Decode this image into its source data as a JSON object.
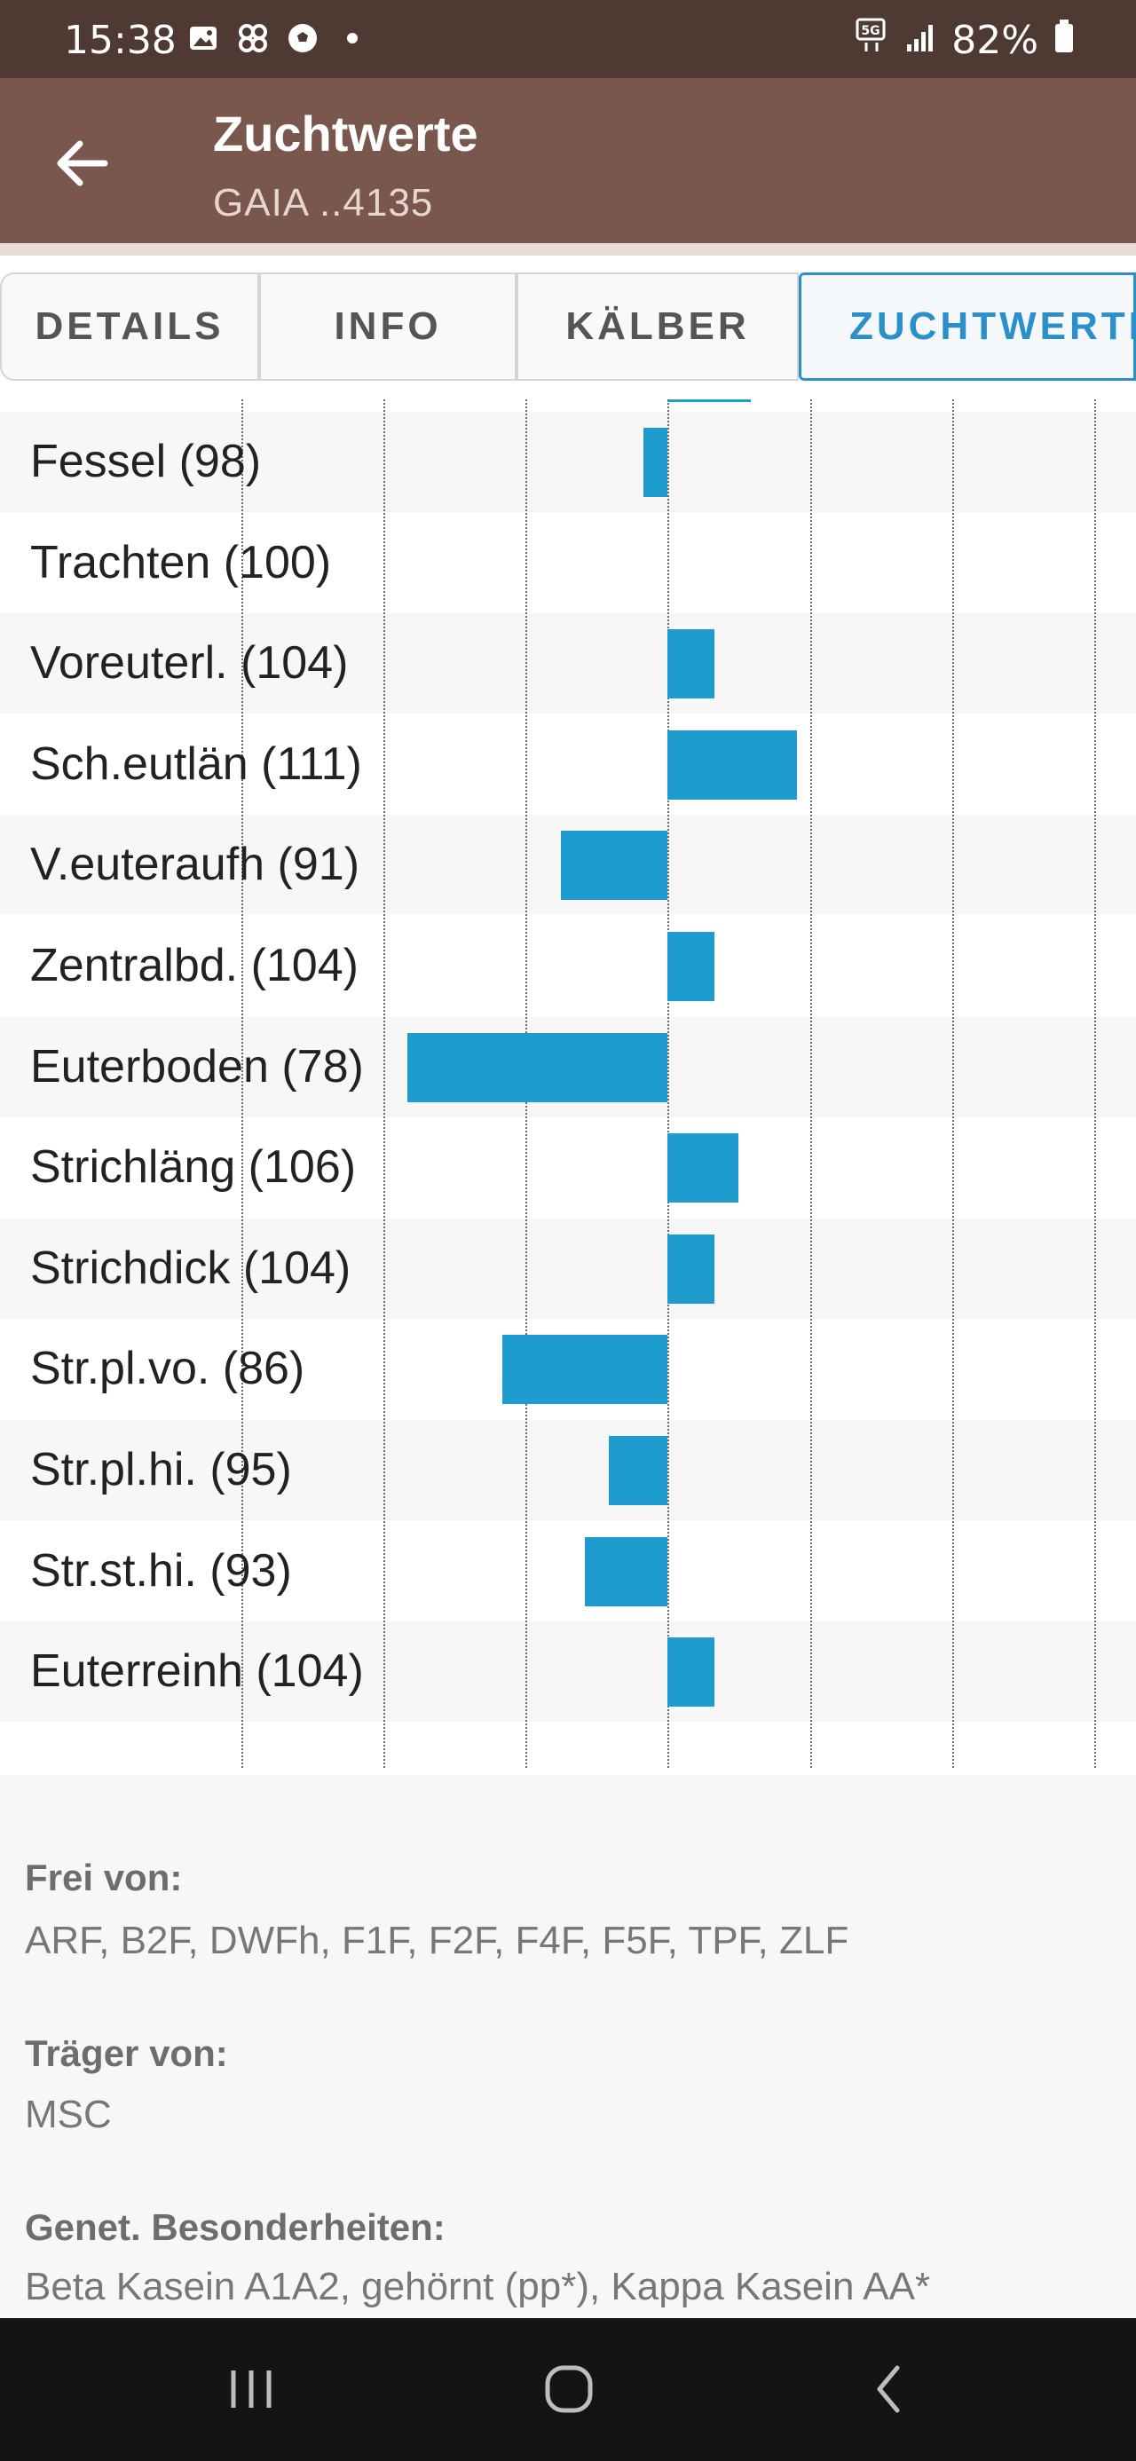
{
  "status_bar": {
    "time": "15:38",
    "network": "5G",
    "battery": "82%",
    "notification_icons": [
      "gallery-icon",
      "pinwheel-icon",
      "soccer-ball-icon",
      "dot-icon"
    ]
  },
  "app_bar": {
    "title": "Zuchtwerte",
    "subtitle": "GAIA ..4135"
  },
  "tabs": [
    {
      "label": "DETAILS",
      "active": false
    },
    {
      "label": "INFO",
      "active": false
    },
    {
      "label": "KÄLBER",
      "active": false
    },
    {
      "label": "ZUCHTWERTE",
      "active": true
    }
  ],
  "chart_data": {
    "type": "bar",
    "orientation": "horizontal",
    "baseline": 100,
    "bar_color": "#1e9bcf",
    "categories": [
      "Fessel (98)",
      "Trachten (100)",
      "Voreuterl. (104)",
      "Sch.eutlän (111)",
      "V.euteraufh (91)",
      "Zentralbd. (104)",
      "Euterboden (78)",
      "Strichläng (106)",
      "Strichdick (104)",
      "Str.pl.vo. (86)",
      "Str.pl.hi. (95)",
      "Str.st.hi. (93)",
      "Euterreinh (104)"
    ],
    "values": [
      98,
      100,
      104,
      111,
      91,
      104,
      78,
      106,
      104,
      86,
      95,
      93,
      104
    ],
    "grid": true
  },
  "sections": [
    {
      "title": "Frei von:",
      "value": "ARF, B2F, DWFh, F1F, F2F, F4F, F5F, TPF, ZLF"
    },
    {
      "title": "Träger von:",
      "value": "MSC"
    },
    {
      "title": "Genet. Besonderheiten:",
      "value": "Beta Kasein A1A2, gehörnt (pp*), Kappa Kasein AA*"
    }
  ],
  "colors": {
    "status_bar": "#4e3a33",
    "app_bar": "#7a574d",
    "accent": "#2a8fca",
    "bar": "#1e9bcf"
  }
}
